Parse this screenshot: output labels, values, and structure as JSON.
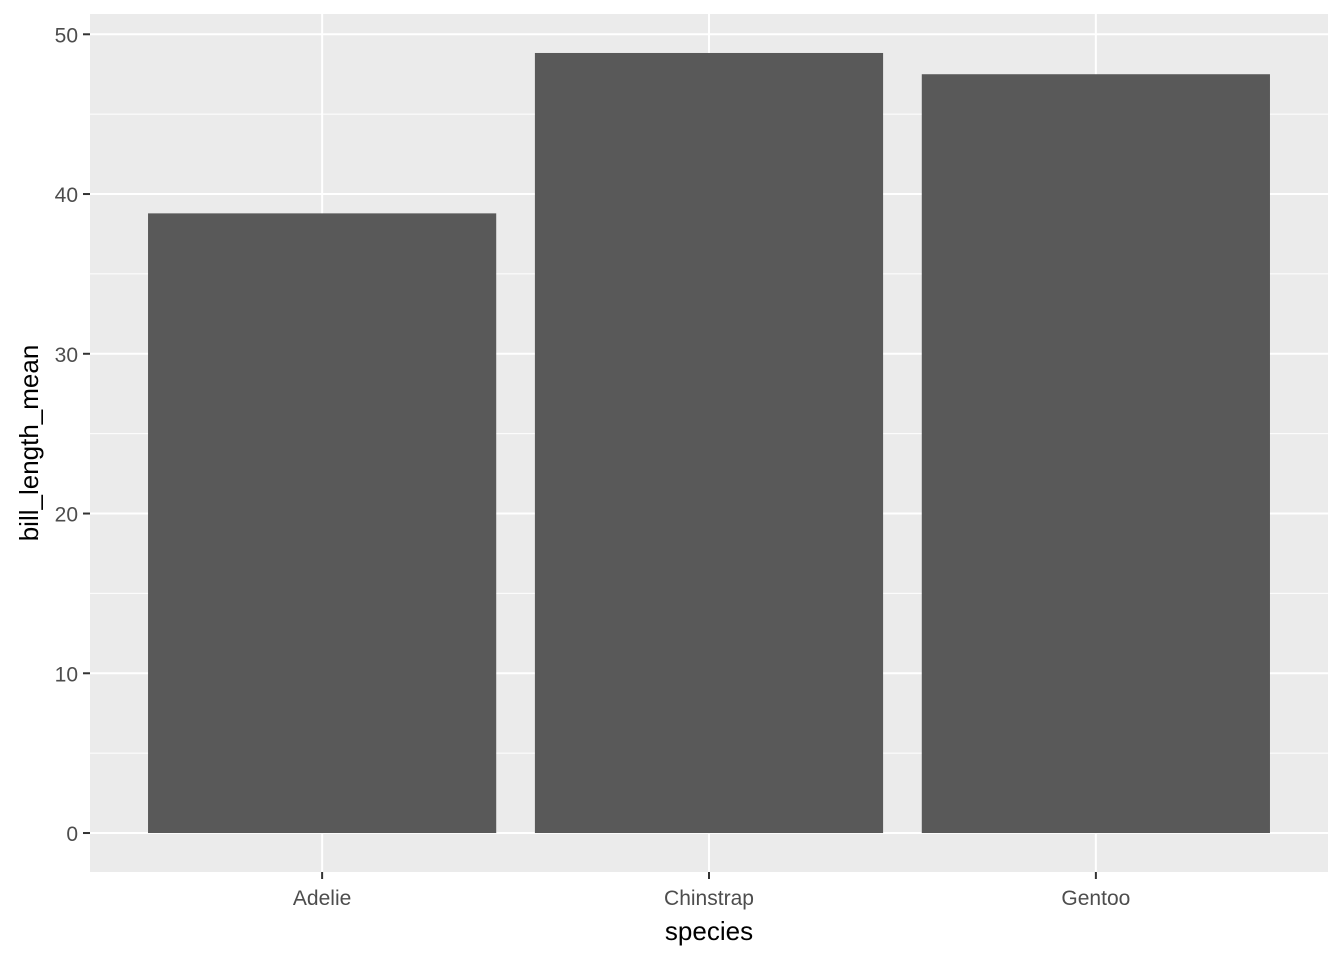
{
  "chart_data": {
    "type": "bar",
    "categories": [
      "Adelie",
      "Chinstrap",
      "Gentoo"
    ],
    "values": [
      38.79,
      48.83,
      47.5
    ],
    "title": "",
    "xlabel": "species",
    "ylabel": "bill_length_mean",
    "ylim": [
      -2.44,
      51.27
    ],
    "yticks": [
      0,
      10,
      20,
      30,
      40,
      50
    ],
    "grid": true,
    "bar_color": "#595959",
    "panel_color": "#EBEBEB",
    "grid_color": "#FFFFFF",
    "tick_label_color": "#4D4D4D"
  }
}
